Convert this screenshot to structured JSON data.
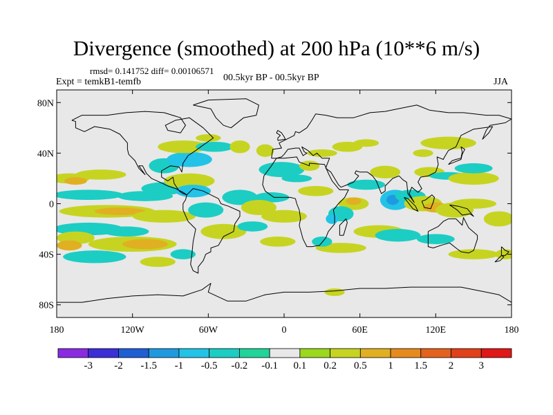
{
  "chart_data": {
    "type": "heatmap",
    "title": "Divergence (smoothed) at 200 hPa (10**6 m/s)",
    "stats_line": "rmsd= 0.141752 diff= 0.00106571",
    "experiment_label": "Expt = temkB1-temfb",
    "period_label": "00.5kyr BP - 00.5kyr BP",
    "season_label": "JJA",
    "x_axis": {
      "range": [
        -180,
        180
      ],
      "ticks": [
        {
          "value": -180,
          "label": "180"
        },
        {
          "value": -120,
          "label": "120W"
        },
        {
          "value": -60,
          "label": "60W"
        },
        {
          "value": 0,
          "label": "0"
        },
        {
          "value": 60,
          "label": "60E"
        },
        {
          "value": 120,
          "label": "120E"
        },
        {
          "value": 180,
          "label": "180"
        }
      ]
    },
    "y_axis": {
      "range": [
        -90,
        90
      ],
      "ticks": [
        {
          "value": 80,
          "label": "80N"
        },
        {
          "value": 40,
          "label": "40N"
        },
        {
          "value": 0,
          "label": "0"
        },
        {
          "value": -40,
          "label": "40S"
        },
        {
          "value": -80,
          "label": "80S"
        }
      ]
    },
    "colorbar": {
      "labels": [
        "-3",
        "-2",
        "-1.5",
        "-1",
        "-0.5",
        "-0.2",
        "-0.1",
        "0.1",
        "0.2",
        "0.5",
        "1",
        "1.5",
        "2",
        "3"
      ],
      "colors": [
        "#8a2be2",
        "#3d2fd6",
        "#1f5fd4",
        "#1f9ae0",
        "#22c3e6",
        "#1ccdc4",
        "#22d39a",
        "#e8e8e8",
        "#9bd81e",
        "#c6d421",
        "#e0b022",
        "#e68a1e",
        "#e2621e",
        "#e0401a",
        "#e01818"
      ]
    },
    "anomalies": [
      {
        "lon": -170,
        "lat": 20,
        "rx": 16,
        "ry": 4,
        "value": 0.2
      },
      {
        "lon": -165,
        "lat": 18,
        "rx": 9,
        "ry": 3,
        "value": 0.5
      },
      {
        "lon": -145,
        "lat": 23,
        "rx": 20,
        "ry": 4,
        "value": 0.2
      },
      {
        "lon": -155,
        "lat": 7,
        "rx": 28,
        "ry": 4,
        "value": -0.2
      },
      {
        "lon": -110,
        "lat": 6,
        "rx": 22,
        "ry": 4,
        "value": -0.2
      },
      {
        "lon": -140,
        "lat": -6,
        "rx": 38,
        "ry": 5,
        "value": 0.2
      },
      {
        "lon": -130,
        "lat": -6,
        "rx": 20,
        "ry": 3,
        "value": 0.5
      },
      {
        "lon": -95,
        "lat": -10,
        "rx": 25,
        "ry": 5,
        "value": 0.2
      },
      {
        "lon": -155,
        "lat": -20,
        "rx": 28,
        "ry": 5,
        "value": -0.2
      },
      {
        "lon": -125,
        "lat": -22,
        "rx": 18,
        "ry": 4,
        "value": -0.2
      },
      {
        "lon": -165,
        "lat": -27,
        "rx": 15,
        "ry": 5,
        "value": 0.2
      },
      {
        "lon": -120,
        "lat": -32,
        "rx": 35,
        "ry": 6,
        "value": 0.2
      },
      {
        "lon": -110,
        "lat": -32,
        "rx": 18,
        "ry": 4,
        "value": 0.5
      },
      {
        "lon": -170,
        "lat": -33,
        "rx": 10,
        "ry": 4,
        "value": 0.5
      },
      {
        "lon": -150,
        "lat": -42,
        "rx": 25,
        "ry": 5,
        "value": -0.2
      },
      {
        "lon": -100,
        "lat": -46,
        "rx": 14,
        "ry": 4,
        "value": 0.2
      },
      {
        "lon": -80,
        "lat": -40,
        "rx": 10,
        "ry": 4,
        "value": -0.2
      },
      {
        "lon": -95,
        "lat": 12,
        "rx": 18,
        "ry": 5,
        "value": -0.2
      },
      {
        "lon": -75,
        "lat": 18,
        "rx": 20,
        "ry": 6,
        "value": 0.2
      },
      {
        "lon": -72,
        "lat": 10,
        "rx": 14,
        "ry": 5,
        "value": -0.5
      },
      {
        "lon": -62,
        "lat": -5,
        "rx": 14,
        "ry": 6,
        "value": -0.2
      },
      {
        "lon": -48,
        "lat": -22,
        "rx": 18,
        "ry": 6,
        "value": 0.2
      },
      {
        "lon": -25,
        "lat": -18,
        "rx": 12,
        "ry": 4,
        "value": -0.2
      },
      {
        "lon": -35,
        "lat": 5,
        "rx": 14,
        "ry": 6,
        "value": -0.2
      },
      {
        "lon": -95,
        "lat": 30,
        "rx": 12,
        "ry": 6,
        "value": -0.2
      },
      {
        "lon": -75,
        "lat": 35,
        "rx": 18,
        "ry": 6,
        "value": -0.5
      },
      {
        "lon": -80,
        "lat": 45,
        "rx": 20,
        "ry": 5,
        "value": 0.2
      },
      {
        "lon": -55,
        "lat": 45,
        "rx": 15,
        "ry": 4,
        "value": -0.2
      },
      {
        "lon": -60,
        "lat": 52,
        "rx": 10,
        "ry": 3,
        "value": 0.2
      },
      {
        "lon": -35,
        "lat": 45,
        "rx": 8,
        "ry": 5,
        "value": 0.2
      },
      {
        "lon": -15,
        "lat": 42,
        "rx": 7,
        "ry": 5,
        "value": 0.2
      },
      {
        "lon": -2,
        "lat": 27,
        "rx": 18,
        "ry": 6,
        "value": -0.2
      },
      {
        "lon": -10,
        "lat": 5,
        "rx": 14,
        "ry": 4,
        "value": -0.2
      },
      {
        "lon": -20,
        "lat": -3,
        "rx": 14,
        "ry": 6,
        "value": 0.2
      },
      {
        "lon": 0,
        "lat": -10,
        "rx": 18,
        "ry": 5,
        "value": 0.2
      },
      {
        "lon": -5,
        "lat": -30,
        "rx": 14,
        "ry": 4,
        "value": 0.2
      },
      {
        "lon": 20,
        "lat": 30,
        "rx": 8,
        "ry": 4,
        "value": 0.2
      },
      {
        "lon": 10,
        "lat": 20,
        "rx": 12,
        "ry": 3,
        "value": -0.2
      },
      {
        "lon": 25,
        "lat": 10,
        "rx": 14,
        "ry": 4,
        "value": 0.2
      },
      {
        "lon": 30,
        "lat": 40,
        "rx": 12,
        "ry": 3,
        "value": 0.2
      },
      {
        "lon": 50,
        "lat": 45,
        "rx": 12,
        "ry": 4,
        "value": 0.2
      },
      {
        "lon": 65,
        "lat": 48,
        "rx": 10,
        "ry": 3,
        "value": 0.2
      },
      {
        "lon": 80,
        "lat": 25,
        "rx": 12,
        "ry": 5,
        "value": 0.2
      },
      {
        "lon": 65,
        "lat": 15,
        "rx": 15,
        "ry": 4,
        "value": -0.2
      },
      {
        "lon": 55,
        "lat": 0,
        "rx": 12,
        "ry": 5,
        "value": 0.2
      },
      {
        "lon": 55,
        "lat": 2,
        "rx": 6,
        "ry": 3,
        "value": 0.5
      },
      {
        "lon": 45,
        "lat": -8,
        "rx": 10,
        "ry": 6,
        "value": -0.2
      },
      {
        "lon": 38,
        "lat": -12,
        "rx": 5,
        "ry": 4,
        "value": -0.5
      },
      {
        "lon": 75,
        "lat": -22,
        "rx": 20,
        "ry": 5,
        "value": 0.2
      },
      {
        "lon": 45,
        "lat": -35,
        "rx": 20,
        "ry": 4,
        "value": 0.2
      },
      {
        "lon": 90,
        "lat": -25,
        "rx": 18,
        "ry": 5,
        "value": -0.2
      },
      {
        "lon": 30,
        "lat": -30,
        "rx": 8,
        "ry": 4,
        "value": -0.2
      },
      {
        "lon": 88,
        "lat": 3,
        "rx": 12,
        "ry": 8,
        "value": -0.5
      },
      {
        "lon": 86,
        "lat": 3,
        "rx": 5,
        "ry": 4,
        "value": -1
      },
      {
        "lon": 100,
        "lat": 6,
        "rx": 12,
        "ry": 5,
        "value": -0.2
      },
      {
        "lon": 110,
        "lat": 0,
        "rx": 15,
        "ry": 6,
        "value": 0.2
      },
      {
        "lon": 120,
        "lat": -3,
        "rx": 10,
        "ry": 4,
        "value": 0.5
      },
      {
        "lon": 135,
        "lat": -5,
        "rx": 15,
        "ry": 6,
        "value": 0.2
      },
      {
        "lon": 150,
        "lat": 0,
        "rx": 18,
        "ry": 4,
        "value": 0.2
      },
      {
        "lon": 170,
        "lat": -12,
        "rx": 12,
        "ry": 6,
        "value": 0.2
      },
      {
        "lon": 115,
        "lat": 25,
        "rx": 12,
        "ry": 4,
        "value": 0.2
      },
      {
        "lon": 130,
        "lat": 22,
        "rx": 15,
        "ry": 3,
        "value": -0.2
      },
      {
        "lon": 150,
        "lat": 20,
        "rx": 20,
        "ry": 5,
        "value": 0.2
      },
      {
        "lon": 150,
        "lat": 28,
        "rx": 15,
        "ry": 4,
        "value": -0.2
      },
      {
        "lon": 130,
        "lat": 48,
        "rx": 22,
        "ry": 5,
        "value": 0.2
      },
      {
        "lon": 110,
        "lat": 40,
        "rx": 8,
        "ry": 3,
        "value": 0.2
      },
      {
        "lon": 150,
        "lat": -40,
        "rx": 20,
        "ry": 4,
        "value": 0.2
      },
      {
        "lon": 120,
        "lat": -28,
        "rx": 15,
        "ry": 4,
        "value": -0.2
      },
      {
        "lon": 175,
        "lat": -40,
        "rx": 8,
        "ry": 4,
        "value": 0.2
      },
      {
        "lon": 40,
        "lat": -70,
        "rx": 8,
        "ry": 3,
        "value": 0.2
      }
    ]
  }
}
